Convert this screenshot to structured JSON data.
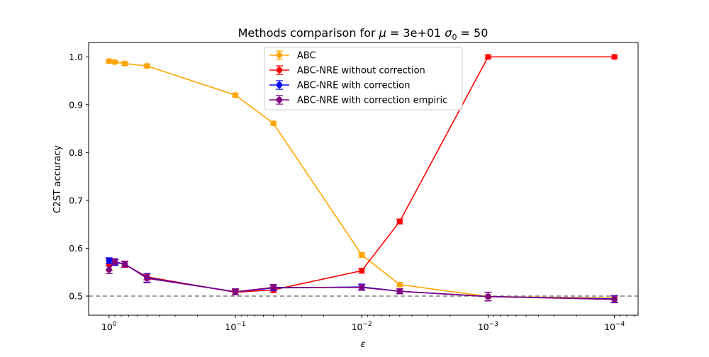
{
  "chart_data": {
    "type": "line",
    "title": "Methods comparison for μ =  3e+01 σ₀ =  50",
    "title_parts": {
      "prefix": "Methods comparison for ",
      "mu": "μ",
      "mu_value": " =  3e+01 ",
      "sigma": "σ",
      "sigma_sub": "0",
      "sigma_value": " =  50"
    },
    "xlabel": "ε",
    "ylabel": "C2ST accuracy",
    "x_scale": "log",
    "x_reversed": true,
    "xlim": [
      1.45,
      6.5e-05
    ],
    "ylim": [
      0.46,
      1.03
    ],
    "x_ticks": [
      {
        "value": 1,
        "base": "10",
        "exp": "0"
      },
      {
        "value": 0.1,
        "base": "10",
        "exp": "−1"
      },
      {
        "value": 0.01,
        "base": "10",
        "exp": "−2"
      },
      {
        "value": 0.001,
        "base": "10",
        "exp": "−3"
      },
      {
        "value": 0.0001,
        "base": "10",
        "exp": "−4"
      }
    ],
    "y_ticks": [
      {
        "value": 0.5,
        "label": "0.5"
      },
      {
        "value": 0.6,
        "label": "0.6"
      },
      {
        "value": 0.7,
        "label": "0.7"
      },
      {
        "value": 0.8,
        "label": "0.8"
      },
      {
        "value": 0.9,
        "label": "0.9"
      },
      {
        "value": 1.0,
        "label": "1.0"
      }
    ],
    "reference_line": {
      "y": 0.5,
      "style": "dashed",
      "color": "#808080"
    },
    "legend_position": "top-center",
    "grid": false,
    "series": [
      {
        "name": "ABC",
        "color": "#ffa500",
        "x": [
          1,
          0.9,
          0.75,
          0.5,
          0.1,
          0.05,
          0.01,
          0.005,
          0.001,
          0.0001
        ],
        "y": [
          0.991,
          0.989,
          0.986,
          0.981,
          0.92,
          0.861,
          0.586,
          0.524,
          0.499,
          0.496
        ],
        "err": [
          0.004,
          0.003,
          0.004,
          0.004,
          0.004,
          0.004,
          0.005,
          0.004,
          0.004,
          0.004
        ]
      },
      {
        "name": "ABC-NRE without correction",
        "color": "#ff0000",
        "x": [
          1,
          0.9,
          0.75,
          0.5,
          0.1,
          0.05,
          0.01,
          0.005,
          0.001,
          0.0001
        ],
        "y": [
          0.566,
          0.571,
          0.566,
          0.54,
          0.508,
          0.513,
          0.553,
          0.656,
          1.0,
          1.0
        ],
        "err": [
          0.012,
          0.006,
          0.006,
          0.006,
          0.005,
          0.006,
          0.005,
          0.005,
          0.004,
          0.004
        ]
      },
      {
        "name": "ABC-NRE with correction",
        "color": "#0000ff",
        "x": [
          1,
          0.9,
          0.75,
          0.5,
          0.1,
          0.05,
          0.01,
          0.005,
          0.001,
          0.0001
        ],
        "y": [
          0.574,
          0.57,
          0.567,
          0.538,
          0.509,
          0.517,
          0.519,
          0.51,
          0.499,
          0.494
        ],
        "err": [
          0.006,
          0.006,
          0.006,
          0.009,
          0.006,
          0.006,
          0.006,
          0.005,
          0.009,
          0.007
        ]
      },
      {
        "name": "ABC-NRE with correction empiric",
        "color": "#800080",
        "x": [
          1,
          0.9,
          0.75,
          0.5,
          0.1,
          0.05,
          0.01,
          0.005,
          0.001,
          0.0001
        ],
        "y": [
          0.555,
          0.572,
          0.567,
          0.537,
          0.509,
          0.518,
          0.518,
          0.51,
          0.499,
          0.493
        ],
        "err": [
          0.008,
          0.006,
          0.006,
          0.009,
          0.006,
          0.006,
          0.006,
          0.005,
          0.009,
          0.007
        ]
      }
    ]
  }
}
